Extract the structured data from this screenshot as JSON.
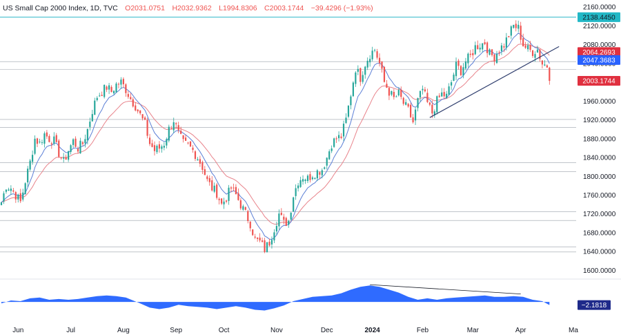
{
  "header": {
    "title": "US Small Cap 2000 Index, 1D, TVC",
    "open": "O2031.0751",
    "high": "H2032.9362",
    "low": "L1994.8306",
    "close": "C2003.1744",
    "change": "−39.4296 (−1.93%)"
  },
  "price_tags": {
    "resistance": "2138.4450",
    "ma_slow": "2064.2693",
    "ma_fast": "2047.3683",
    "last": "2003.1744",
    "oscillator": "−2.1818"
  },
  "colors": {
    "up": "#26a69a",
    "down": "#ef5350",
    "ma_fast": "#5b7fd6",
    "ma_slow": "#e8828a",
    "resistance": "#26b5c8",
    "trendline": "#2f3e6e",
    "oscillator": "#2f6bff",
    "tag_red": "#e0303f",
    "tag_blue": "#2962ff",
    "tag_cyan": "#22b8c6"
  },
  "chart_data": {
    "type": "candlestick",
    "ylim": [
      1580,
      2175
    ],
    "y_ticks": [
      1600,
      1640,
      1680,
      1720,
      1760,
      1800,
      1840,
      1880,
      1920,
      1960,
      2000,
      2040,
      2080,
      2120,
      2160
    ],
    "y_tick_labels": [
      "1600.0000",
      "1640.0000",
      "1680.0000",
      "1720.0000",
      "1760.0000",
      "1800.0000",
      "1840.0000",
      "1880.0000",
      "1920.0000",
      "1960.0000",
      "2000.0000",
      "2040.0000",
      "2080.0000",
      "2120.0000",
      "2160.0000"
    ],
    "x_ticks": [
      {
        "label": "Jun",
        "index": 7
      },
      {
        "label": "Jul",
        "index": 29
      },
      {
        "label": "Aug",
        "index": 51
      },
      {
        "label": "Sep",
        "index": 73
      },
      {
        "label": "Oct",
        "index": 93
      },
      {
        "label": "Nov",
        "index": 115
      },
      {
        "label": "Dec",
        "index": 136
      },
      {
        "label": "2024",
        "index": 155
      },
      {
        "label": "Feb",
        "index": 176
      },
      {
        "label": "Mar",
        "index": 197
      },
      {
        "label": "Apr",
        "index": 217
      },
      {
        "label": "Ma",
        "index": 239
      }
    ],
    "horizontal_levels": [
      2138.4,
      2044,
      2027,
      1921,
      1904,
      1829,
      1810,
      1725,
      1706,
      1650,
      1639
    ],
    "resistance_level": 2138.4,
    "trendline": {
      "from": {
        "index": 179,
        "value": 1925
      },
      "to": {
        "index": 233,
        "value": 2076
      }
    },
    "close_path": [
      {
        "i": 0,
        "v": 1745
      },
      {
        "i": 2,
        "v": 1780
      },
      {
        "i": 4,
        "v": 1775
      },
      {
        "i": 6,
        "v": 1760
      },
      {
        "i": 8,
        "v": 1745
      },
      {
        "i": 10,
        "v": 1790
      },
      {
        "i": 12,
        "v": 1830
      },
      {
        "i": 14,
        "v": 1880
      },
      {
        "i": 16,
        "v": 1870
      },
      {
        "i": 18,
        "v": 1890
      },
      {
        "i": 20,
        "v": 1880
      },
      {
        "i": 22,
        "v": 1875
      },
      {
        "i": 24,
        "v": 1850
      },
      {
        "i": 26,
        "v": 1830
      },
      {
        "i": 28,
        "v": 1855
      },
      {
        "i": 30,
        "v": 1875
      },
      {
        "i": 32,
        "v": 1860
      },
      {
        "i": 34,
        "v": 1870
      },
      {
        "i": 36,
        "v": 1900
      },
      {
        "i": 38,
        "v": 1940
      },
      {
        "i": 40,
        "v": 1970
      },
      {
        "i": 42,
        "v": 1980
      },
      {
        "i": 44,
        "v": 1990
      },
      {
        "i": 46,
        "v": 1980
      },
      {
        "i": 48,
        "v": 1995
      },
      {
        "i": 50,
        "v": 2000
      },
      {
        "i": 52,
        "v": 1985
      },
      {
        "i": 54,
        "v": 1965
      },
      {
        "i": 56,
        "v": 1950
      },
      {
        "i": 58,
        "v": 1930
      },
      {
        "i": 60,
        "v": 1910
      },
      {
        "i": 62,
        "v": 1870
      },
      {
        "i": 64,
        "v": 1855
      },
      {
        "i": 66,
        "v": 1860
      },
      {
        "i": 68,
        "v": 1870
      },
      {
        "i": 70,
        "v": 1900
      },
      {
        "i": 72,
        "v": 1920
      },
      {
        "i": 74,
        "v": 1890
      },
      {
        "i": 76,
        "v": 1870
      },
      {
        "i": 78,
        "v": 1865
      },
      {
        "i": 80,
        "v": 1855
      },
      {
        "i": 82,
        "v": 1840
      },
      {
        "i": 84,
        "v": 1820
      },
      {
        "i": 86,
        "v": 1790
      },
      {
        "i": 88,
        "v": 1775
      },
      {
        "i": 90,
        "v": 1765
      },
      {
        "i": 92,
        "v": 1740
      },
      {
        "i": 94,
        "v": 1755
      },
      {
        "i": 96,
        "v": 1775
      },
      {
        "i": 98,
        "v": 1760
      },
      {
        "i": 100,
        "v": 1740
      },
      {
        "i": 102,
        "v": 1720
      },
      {
        "i": 104,
        "v": 1700
      },
      {
        "i": 106,
        "v": 1665
      },
      {
        "i": 108,
        "v": 1660
      },
      {
        "i": 110,
        "v": 1645
      },
      {
        "i": 112,
        "v": 1660
      },
      {
        "i": 114,
        "v": 1690
      },
      {
        "i": 116,
        "v": 1720
      },
      {
        "i": 118,
        "v": 1700
      },
      {
        "i": 120,
        "v": 1705
      },
      {
        "i": 122,
        "v": 1760
      },
      {
        "i": 124,
        "v": 1790
      },
      {
        "i": 126,
        "v": 1800
      },
      {
        "i": 128,
        "v": 1795
      },
      {
        "i": 130,
        "v": 1805
      },
      {
        "i": 132,
        "v": 1810
      },
      {
        "i": 134,
        "v": 1815
      },
      {
        "i": 136,
        "v": 1840
      },
      {
        "i": 138,
        "v": 1870
      },
      {
        "i": 140,
        "v": 1880
      },
      {
        "i": 142,
        "v": 1885
      },
      {
        "i": 144,
        "v": 1920
      },
      {
        "i": 146,
        "v": 1975
      },
      {
        "i": 148,
        "v": 2030
      },
      {
        "i": 150,
        "v": 2010
      },
      {
        "i": 152,
        "v": 2040
      },
      {
        "i": 154,
        "v": 2060
      },
      {
        "i": 156,
        "v": 2070
      },
      {
        "i": 158,
        "v": 2040
      },
      {
        "i": 160,
        "v": 2000
      },
      {
        "i": 162,
        "v": 1980
      },
      {
        "i": 164,
        "v": 1965
      },
      {
        "i": 166,
        "v": 1975
      },
      {
        "i": 168,
        "v": 1955
      },
      {
        "i": 170,
        "v": 1940
      },
      {
        "i": 172,
        "v": 1915
      },
      {
        "i": 174,
        "v": 1960
      },
      {
        "i": 176,
        "v": 1985
      },
      {
        "i": 178,
        "v": 1955
      },
      {
        "i": 180,
        "v": 1935
      },
      {
        "i": 182,
        "v": 1960
      },
      {
        "i": 184,
        "v": 1975
      },
      {
        "i": 186,
        "v": 1970
      },
      {
        "i": 188,
        "v": 2000
      },
      {
        "i": 190,
        "v": 2035
      },
      {
        "i": 192,
        "v": 2025
      },
      {
        "i": 194,
        "v": 2045
      },
      {
        "i": 196,
        "v": 2055
      },
      {
        "i": 198,
        "v": 2075
      },
      {
        "i": 200,
        "v": 2080
      },
      {
        "i": 202,
        "v": 2085
      },
      {
        "i": 204,
        "v": 2060
      },
      {
        "i": 206,
        "v": 2055
      },
      {
        "i": 208,
        "v": 2070
      },
      {
        "i": 210,
        "v": 2080
      },
      {
        "i": 212,
        "v": 2100
      },
      {
        "i": 214,
        "v": 2120
      },
      {
        "i": 216,
        "v": 2115
      },
      {
        "i": 218,
        "v": 2080
      },
      {
        "i": 220,
        "v": 2070
      },
      {
        "i": 222,
        "v": 2065
      },
      {
        "i": 224,
        "v": 2070
      },
      {
        "i": 226,
        "v": 2040
      },
      {
        "i": 228,
        "v": 2035
      },
      {
        "i": 229,
        "v": 2003
      }
    ],
    "oscillator": {
      "ylim": [
        -12,
        14
      ],
      "last_value": -2.1818,
      "points": [
        {
          "i": 0,
          "v": -1
        },
        {
          "i": 4,
          "v": 1
        },
        {
          "i": 8,
          "v": 0.5
        },
        {
          "i": 12,
          "v": 2.5
        },
        {
          "i": 16,
          "v": 3
        },
        {
          "i": 20,
          "v": 1.5
        },
        {
          "i": 24,
          "v": 2
        },
        {
          "i": 28,
          "v": 1.5
        },
        {
          "i": 32,
          "v": 2
        },
        {
          "i": 36,
          "v": 3
        },
        {
          "i": 40,
          "v": 4
        },
        {
          "i": 44,
          "v": 4.5
        },
        {
          "i": 48,
          "v": 4
        },
        {
          "i": 52,
          "v": 3
        },
        {
          "i": 55,
          "v": 1
        },
        {
          "i": 58,
          "v": -1
        },
        {
          "i": 62,
          "v": -4
        },
        {
          "i": 66,
          "v": -5
        },
        {
          "i": 70,
          "v": -4
        },
        {
          "i": 74,
          "v": -2
        },
        {
          "i": 78,
          "v": -3
        },
        {
          "i": 82,
          "v": -3.5
        },
        {
          "i": 86,
          "v": -4
        },
        {
          "i": 90,
          "v": -5
        },
        {
          "i": 94,
          "v": -4
        },
        {
          "i": 98,
          "v": -3
        },
        {
          "i": 102,
          "v": -4
        },
        {
          "i": 106,
          "v": -5.5
        },
        {
          "i": 110,
          "v": -6
        },
        {
          "i": 114,
          "v": -4.5
        },
        {
          "i": 118,
          "v": -2.5
        },
        {
          "i": 122,
          "v": 0.5
        },
        {
          "i": 126,
          "v": 2
        },
        {
          "i": 130,
          "v": 3.5
        },
        {
          "i": 134,
          "v": 4
        },
        {
          "i": 138,
          "v": 4.5
        },
        {
          "i": 142,
          "v": 6
        },
        {
          "i": 146,
          "v": 8.5
        },
        {
          "i": 150,
          "v": 10.5
        },
        {
          "i": 154,
          "v": 11.5
        },
        {
          "i": 158,
          "v": 10.5
        },
        {
          "i": 162,
          "v": 8.5
        },
        {
          "i": 166,
          "v": 6.5
        },
        {
          "i": 170,
          "v": 3.5
        },
        {
          "i": 174,
          "v": 1.5
        },
        {
          "i": 178,
          "v": 2.5
        },
        {
          "i": 182,
          "v": 1.5
        },
        {
          "i": 186,
          "v": 2.5
        },
        {
          "i": 190,
          "v": 3
        },
        {
          "i": 194,
          "v": 3.5
        },
        {
          "i": 198,
          "v": 4
        },
        {
          "i": 202,
          "v": 4.5
        },
        {
          "i": 206,
          "v": 3.5
        },
        {
          "i": 210,
          "v": 3.5
        },
        {
          "i": 214,
          "v": 4
        },
        {
          "i": 218,
          "v": 3.5
        },
        {
          "i": 222,
          "v": 1.5
        },
        {
          "i": 226,
          "v": 0.5
        },
        {
          "i": 229,
          "v": -2.2
        }
      ],
      "divergence_line": {
        "from": {
          "i": 154,
          "v": 12
        },
        "to": {
          "i": 217,
          "v": 5.5
        }
      }
    }
  }
}
